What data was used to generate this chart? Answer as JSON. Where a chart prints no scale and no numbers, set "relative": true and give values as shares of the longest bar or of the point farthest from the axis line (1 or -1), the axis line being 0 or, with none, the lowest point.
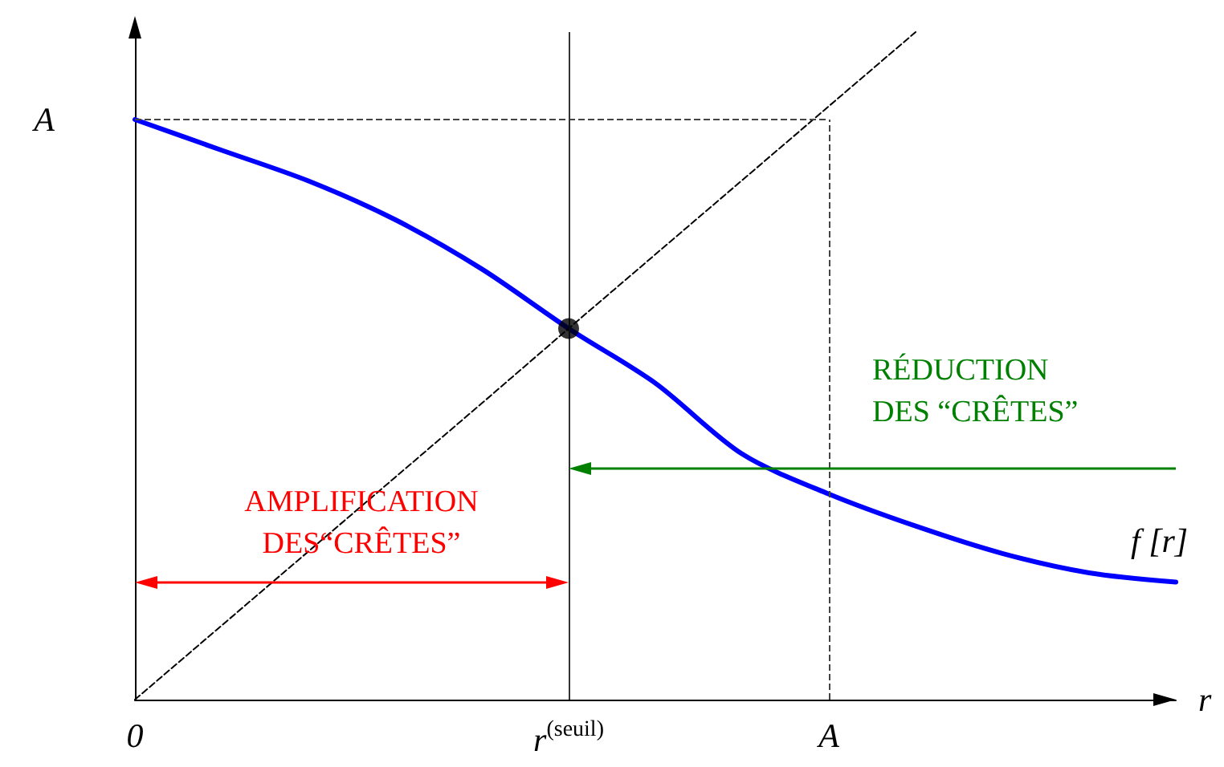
{
  "chart_data": {
    "type": "line",
    "relative": true,
    "xlabel": "r",
    "categories": [
      "0",
      null,
      null,
      null,
      null,
      "r$^{(seuil)}$",
      null,
      null,
      "A",
      null,
      null,
      null,
      null
    ],
    "series": [
      {
        "name": "f [r]",
        "color": "#0000ff",
        "line_style": "solid",
        "values": [
          0.869,
          0.823,
          0.777,
          0.719,
          0.645,
          0.556,
          0.474,
          0.368,
          0.308,
          0.26,
          0.219,
          0.19,
          0.176
        ]
      },
      {
        "color": "#000000",
        "line_style": "dashed",
        "values": [
          0,
          0.111,
          0.222,
          0.333,
          0.444,
          0.556,
          0.667,
          0.778,
          0.889,
          1,
          null,
          null,
          null
        ]
      },
      {
        "type": "scatter",
        "marker": "circle",
        "color": "#000000",
        "x": [
          "r$^{(seuil)}$"
        ],
        "values": [
          0.556
        ]
      }
    ],
    "marker": "none",
    "ref_lines": [
      {
        "axis": "y",
        "value": 0.869,
        "label": "A",
        "line_style": "dashed",
        "color": "#444444"
      },
      {
        "axis": "x",
        "value": "A",
        "line_style": "dashed",
        "color": "#444444"
      },
      {
        "axis": "x",
        "value": "r$^{(seuil)}$",
        "line_style": "solid",
        "color": "#333333"
      }
    ],
    "annotations": [
      "AMPLIFICATION\nDES“CRÊTES”",
      "RÉDUCTION\nDES “CRÊTES”"
    ]
  }
}
